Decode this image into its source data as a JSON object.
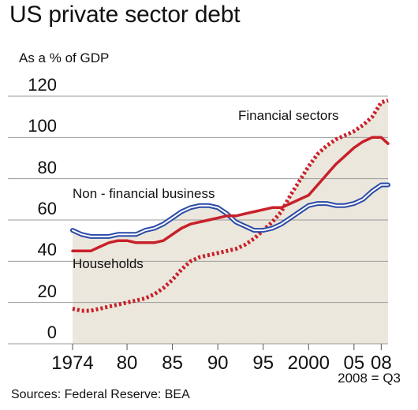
{
  "chart_data": {
    "type": "line",
    "title": "US private sector debt",
    "ylabel": "As a % of GDP",
    "ylim": [
      0,
      120
    ],
    "xlim": [
      1974,
      2008.75
    ],
    "yticks": [
      0,
      20,
      40,
      60,
      80,
      100,
      120
    ],
    "xticks": [
      {
        "value": 1974,
        "label": "1974"
      },
      {
        "value": 1980,
        "label": "80"
      },
      {
        "value": 1985,
        "label": "85"
      },
      {
        "value": 1990,
        "label": "90"
      },
      {
        "value": 1995,
        "label": "95"
      },
      {
        "value": 2000,
        "label": "2000"
      },
      {
        "value": 2005,
        "label": "05"
      },
      {
        "value": 2008,
        "label": "08"
      }
    ],
    "grid": true,
    "note": "2008 = Q3",
    "source": "Sources: Federal Reserve: BEA",
    "series": [
      {
        "name": "Financial sectors",
        "color": "#c8202a",
        "style": "dotted",
        "x": [
          1974,
          1975,
          1976,
          1977,
          1978,
          1979,
          1980,
          1981,
          1982,
          1983,
          1984,
          1985,
          1986,
          1987,
          1988,
          1989,
          1990,
          1991,
          1992,
          1993,
          1994,
          1995,
          1996,
          1997,
          1998,
          1999,
          2000,
          2001,
          2002,
          2003,
          2004,
          2005,
          2006,
          2007,
          2008,
          2008.75
        ],
        "y": [
          17,
          16,
          16,
          17,
          18,
          19,
          20,
          21,
          22,
          24,
          27,
          31,
          36,
          40,
          42,
          43,
          44,
          45,
          46,
          48,
          51,
          55,
          59,
          64,
          72,
          79,
          86,
          92,
          96,
          99,
          101,
          103,
          106,
          110,
          117,
          118
        ]
      },
      {
        "name": "Non - financial business",
        "color": "#2a4aa8",
        "style": "double",
        "x": [
          1974,
          1975,
          1976,
          1977,
          1978,
          1979,
          1980,
          1981,
          1982,
          1983,
          1984,
          1985,
          1986,
          1987,
          1988,
          1989,
          1990,
          1991,
          1992,
          1993,
          1994,
          1995,
          1996,
          1997,
          1998,
          1999,
          2000,
          2001,
          2002,
          2003,
          2004,
          2005,
          2006,
          2007,
          2008,
          2008.75
        ],
        "y": [
          55,
          53,
          52,
          52,
          52,
          53,
          53,
          53,
          55,
          56,
          58,
          61,
          64,
          66,
          67,
          67,
          66,
          63,
          59,
          57,
          55,
          55,
          56,
          58,
          61,
          64,
          67,
          68,
          68,
          67,
          67,
          68,
          70,
          74,
          77,
          77
        ]
      },
      {
        "name": "Households",
        "color": "#c8202a",
        "style": "solid",
        "x": [
          1974,
          1975,
          1976,
          1977,
          1978,
          1979,
          1980,
          1981,
          1982,
          1983,
          1984,
          1985,
          1986,
          1987,
          1988,
          1989,
          1990,
          1991,
          1992,
          1993,
          1994,
          1995,
          1996,
          1997,
          1998,
          1999,
          2000,
          2001,
          2002,
          2003,
          2004,
          2005,
          2006,
          2007,
          2008,
          2008.75
        ],
        "y": [
          45,
          45,
          45,
          47,
          49,
          50,
          50,
          49,
          49,
          49,
          50,
          53,
          56,
          58,
          59,
          60,
          61,
          62,
          62,
          63,
          64,
          65,
          66,
          66,
          68,
          70,
          72,
          77,
          82,
          87,
          91,
          95,
          98,
          100,
          100,
          97
        ]
      }
    ]
  }
}
